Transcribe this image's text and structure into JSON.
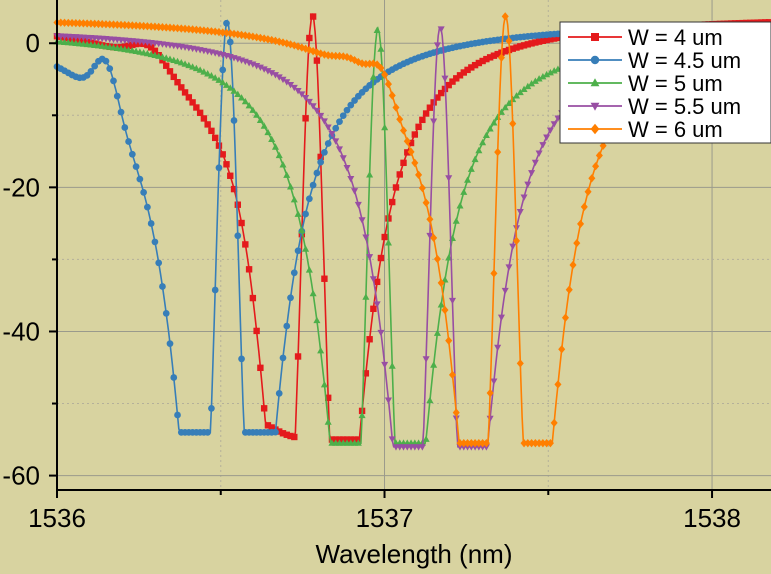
{
  "chart_data": {
    "type": "line",
    "title": "",
    "xlabel": "Wavelength (nm)",
    "ylabel": "",
    "xlim": [
      1536,
      1538.18
    ],
    "ylim": [
      -62,
      6
    ],
    "x_ticks": [
      1536,
      1537,
      1538
    ],
    "y_ticks": [
      0,
      -20,
      -40,
      -60
    ],
    "x_tick_labels": [
      "1536",
      "1537",
      "1538"
    ],
    "y_tick_labels": [
      "0",
      "-20",
      "-40",
      "-60"
    ],
    "grid": true,
    "legend_position": "top-right",
    "background_color": "#d8d3a0",
    "series": [
      {
        "name": "W = 4 um",
        "color": "#e41a1c",
        "marker": "square",
        "center": 1536.78,
        "peak": 3.8,
        "baseline": -55,
        "floor": -57,
        "lorentz_amp": 215,
        "lorentz_hw": 0.09,
        "gauss_hw": 0.055,
        "bumps": [
          {
            "x": 1536.28,
            "dy": 2.6,
            "w": 0.05
          },
          {
            "x": 1536.58,
            "dy": 3.0,
            "w": 0.07
          }
        ]
      },
      {
        "name": "W = 4.5 um",
        "color": "#377eb8",
        "marker": "circle",
        "center": 1536.52,
        "peak": 3.0,
        "baseline": -54,
        "floor": -57,
        "lorentz_amp": 215,
        "lorentz_hw": 0.09,
        "gauss_hw": 0.055,
        "bumps": [
          {
            "x": 1536.15,
            "dy": 6.5,
            "w": 0.035
          }
        ]
      },
      {
        "name": "W = 5 um",
        "color": "#4daf4a",
        "marker": "triangle-up",
        "center": 1536.98,
        "peak": 2.0,
        "baseline": -55.5,
        "floor": -57,
        "lorentz_amp": 215,
        "lorentz_hw": 0.09,
        "gauss_hw": 0.055,
        "bumps": []
      },
      {
        "name": "W = 5.5 um",
        "color": "#984ea3",
        "marker": "triangle-down",
        "center": 1537.17,
        "peak": 2.3,
        "baseline": -56,
        "floor": -57,
        "lorentz_amp": 215,
        "lorentz_hw": 0.09,
        "gauss_hw": 0.055,
        "bumps": []
      },
      {
        "name": "W = 6 um",
        "color": "#ff7f00",
        "marker": "diamond",
        "center": 1537.37,
        "peak": 3.8,
        "baseline": -55.5,
        "floor": -56,
        "lorentz_amp": 215,
        "lorentz_hw": 0.09,
        "gauss_hw": 0.055,
        "bumps": [
          {
            "x": 1536.9,
            "dy": 1.5,
            "w": 0.04
          },
          {
            "x": 1536.99,
            "dy": 4.0,
            "w": 0.035
          }
        ]
      }
    ]
  }
}
